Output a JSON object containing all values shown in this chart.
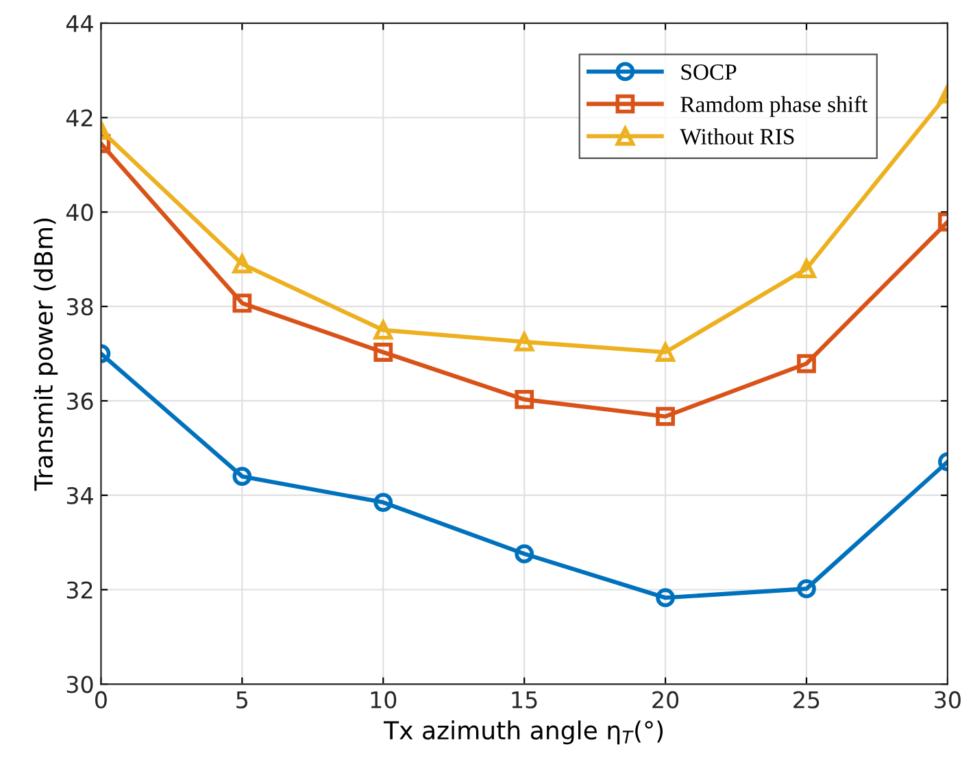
{
  "chart_data": {
    "type": "line",
    "xlabel": "Tx azimuth angle η$_{T}$(°)",
    "ylabel": "Transmit power (dBm)",
    "x": [
      0,
      5,
      10,
      15,
      20,
      25,
      30
    ],
    "series": [
      {
        "name": "SOCP",
        "color": "#0072bd",
        "marker": "circle",
        "values": [
          37.0,
          34.4,
          33.85,
          32.76,
          31.83,
          32.02,
          34.71
        ]
      },
      {
        "name": "Ramdom phase shift",
        "color": "#d95319",
        "marker": "square",
        "values": [
          41.45,
          38.07,
          37.03,
          36.03,
          35.67,
          36.79,
          39.79
        ]
      },
      {
        "name": "Without RIS",
        "color": "#edb120",
        "marker": "triangle",
        "values": [
          41.73,
          38.9,
          37.5,
          37.25,
          37.03,
          38.8,
          42.5
        ]
      }
    ],
    "xlim": [
      0,
      30
    ],
    "xticks": [
      0,
      5,
      10,
      15,
      20,
      25,
      30
    ],
    "ylim": [
      30,
      44
    ],
    "yticks": [
      30,
      32,
      34,
      36,
      38,
      40,
      42,
      44
    ],
    "grid": true,
    "legend": "top right",
    "line_style": "solid"
  }
}
